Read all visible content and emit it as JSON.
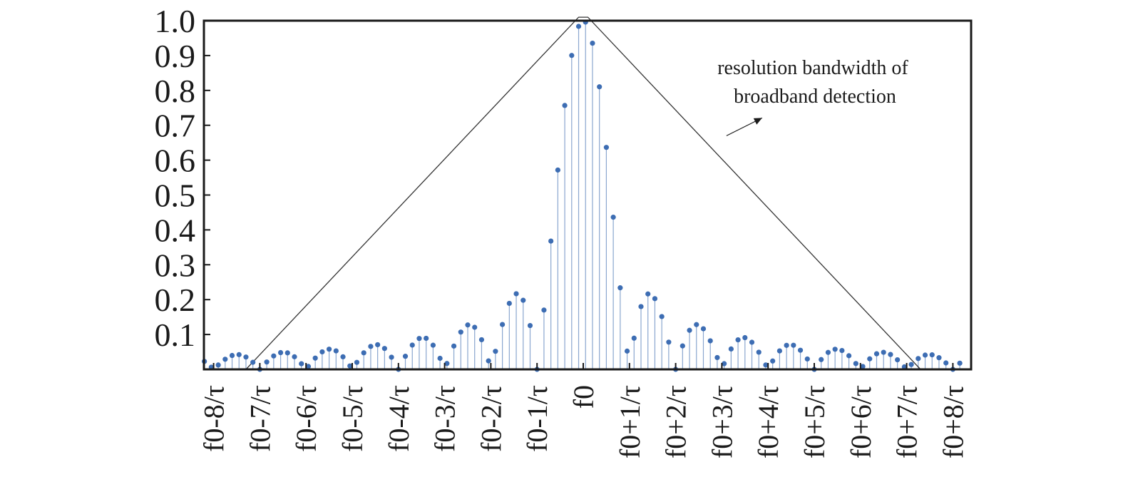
{
  "chart_data": {
    "type": "stem",
    "title": "",
    "xlabel": "",
    "ylabel": "",
    "ylim": [
      0,
      1.0
    ],
    "xlim": [
      -8.2,
      8.2
    ],
    "grid": false,
    "y_ticks": [
      0.1,
      0.2,
      0.3,
      0.4,
      0.5,
      0.6,
      0.7,
      0.8,
      0.9,
      1.0
    ],
    "y_tick_labels": [
      "0.1",
      "0.2",
      "0.3",
      "0.4",
      "0.5",
      "0.6",
      "0.7",
      "0.8",
      "0.9",
      "1.0"
    ],
    "x_ticks": [
      -8,
      -7,
      -6,
      -5,
      -4,
      -3,
      -2,
      -1,
      0,
      1,
      2,
      3,
      4,
      5,
      6,
      7,
      8
    ],
    "x_tick_labels": [
      "f0-8/τ",
      "f0-7/τ",
      "f0-6/τ",
      "f0-5/τ",
      "f0-4/τ",
      "f0-3/τ",
      "f0-2/τ",
      "f0-1/τ",
      "f0",
      "f0+1/τ",
      "f0+2/τ",
      "f0+3/τ",
      "f0+4/τ",
      "f0+5/τ",
      "f0+6/τ",
      "f0+7/τ",
      "f0+8/τ"
    ],
    "series": [
      {
        "function": "abs(sinc(x))",
        "x_start": -8.2,
        "x_end": 8.2,
        "x_step": 0.15,
        "color": "#3d6db3",
        "marker": "dot"
      }
    ],
    "envelope": {
      "shape": "triangle",
      "x": [
        -7.3,
        -0.1,
        0.1,
        7.3
      ],
      "y": [
        0,
        1.01,
        1.01,
        0
      ],
      "color": "#333333"
    },
    "annotation": {
      "lines": [
        "resolution bandwidth of",
        "broadband detection"
      ],
      "arrow_to": {
        "x": 3.1,
        "y": 0.67
      }
    }
  }
}
